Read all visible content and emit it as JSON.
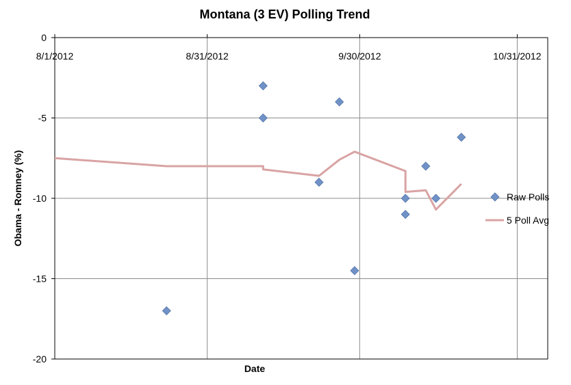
{
  "chart_data": {
    "type": "scatter",
    "title": "Montana (3 EV) Polling Trend",
    "xlabel": "Date",
    "ylabel": "Obama - Romney (%)",
    "xlim": [
      "2012-08-01",
      "2012-11-06"
    ],
    "ylim": [
      -20,
      0
    ],
    "x_ticks": [
      {
        "date": "2012-08-01",
        "label": "8/1/2012"
      },
      {
        "date": "2012-08-31",
        "label": "8/31/2012"
      },
      {
        "date": "2012-09-30",
        "label": "9/30/2012"
      },
      {
        "date": "2012-10-31",
        "label": "10/31/2012"
      }
    ],
    "y_ticks": [
      0,
      -5,
      -10,
      -15,
      -20
    ],
    "grid": true,
    "legend_position": "right",
    "series": [
      {
        "name": "Raw Polls",
        "type": "scatter",
        "color": "#7092c6",
        "marker": "diamond",
        "points": [
          {
            "x": "2012-08-23",
            "y": -17
          },
          {
            "x": "2012-09-11",
            "y": -3
          },
          {
            "x": "2012-09-11",
            "y": -5
          },
          {
            "x": "2012-09-22",
            "y": -9
          },
          {
            "x": "2012-09-26",
            "y": -4
          },
          {
            "x": "2012-09-29",
            "y": -14.5
          },
          {
            "x": "2012-10-09",
            "y": -10
          },
          {
            "x": "2012-10-09",
            "y": -11
          },
          {
            "x": "2012-10-13",
            "y": -8
          },
          {
            "x": "2012-10-15",
            "y": -10
          },
          {
            "x": "2012-10-20",
            "y": -6.2
          }
        ]
      },
      {
        "name": "5 Poll Avg",
        "type": "line",
        "color": "#d9a3a3",
        "points": [
          {
            "x": "2012-08-01",
            "y": -7.5
          },
          {
            "x": "2012-08-23",
            "y": -8
          },
          {
            "x": "2012-09-11",
            "y": -8
          },
          {
            "x": "2012-09-11",
            "y": -8.2
          },
          {
            "x": "2012-09-22",
            "y": -8.6
          },
          {
            "x": "2012-09-26",
            "y": -7.6
          },
          {
            "x": "2012-09-29",
            "y": -7.1
          },
          {
            "x": "2012-10-09",
            "y": -8.3
          },
          {
            "x": "2012-10-09",
            "y": -9.6
          },
          {
            "x": "2012-10-13",
            "y": -9.5
          },
          {
            "x": "2012-10-15",
            "y": -10.7
          },
          {
            "x": "2012-10-20",
            "y": -9.1
          }
        ]
      }
    ]
  }
}
